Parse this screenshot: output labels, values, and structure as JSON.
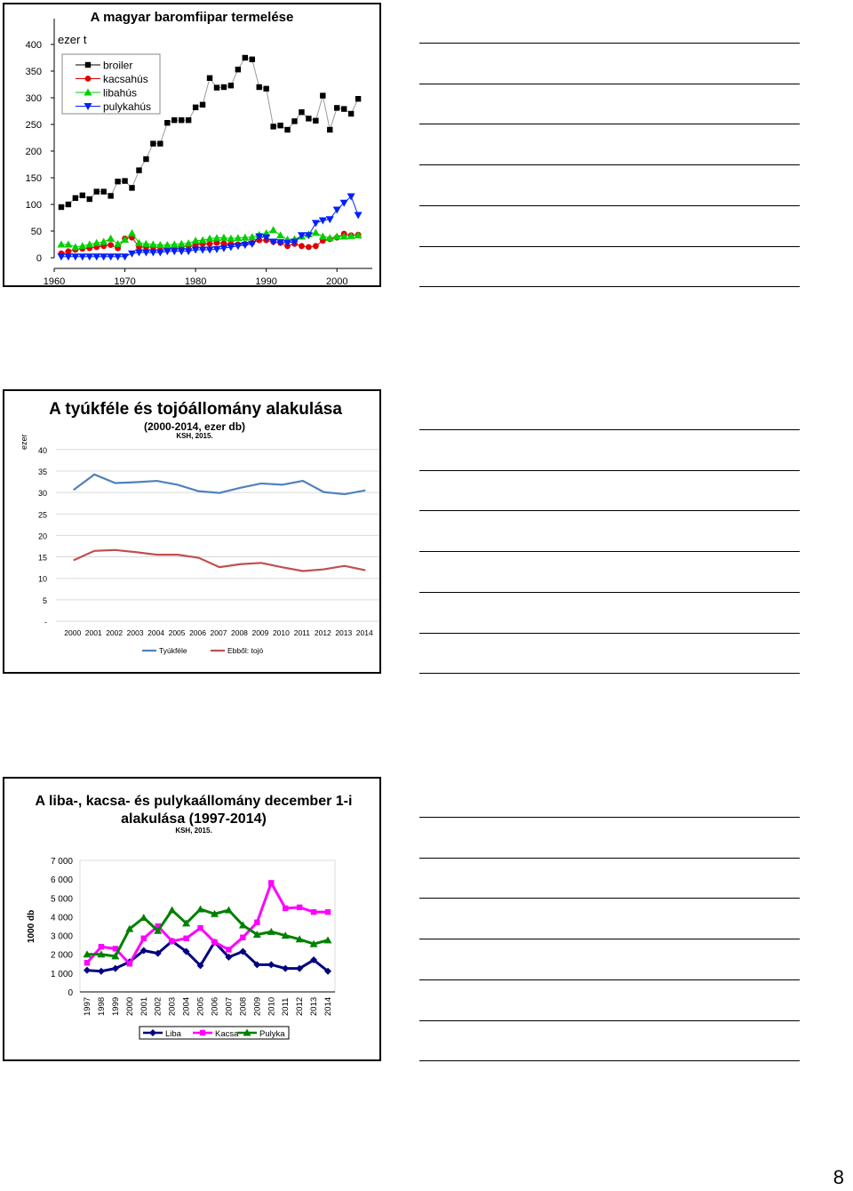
{
  "page_number": "8",
  "chart_data": [
    {
      "type": "line",
      "title": "A magyar baromfiipar termelése",
      "ylabel": "ezer t",
      "xlabel": "",
      "x_ticks": [
        "1960",
        "1970",
        "1980",
        "1990",
        "2000"
      ],
      "y_ticks": [
        "0",
        "50",
        "100",
        "150",
        "200",
        "250",
        "300",
        "350",
        "400"
      ],
      "xlim": [
        1960,
        2005
      ],
      "ylim": [
        0,
        400
      ],
      "legend_position": "top-left",
      "x": [
        1961,
        1962,
        1963,
        1964,
        1965,
        1966,
        1967,
        1968,
        1969,
        1970,
        1971,
        1972,
        1973,
        1974,
        1975,
        1976,
        1977,
        1978,
        1979,
        1980,
        1981,
        1982,
        1983,
        1984,
        1985,
        1986,
        1987,
        1988,
        1989,
        1990,
        1991,
        1992,
        1993,
        1994,
        1995,
        1996,
        1997,
        1998,
        1999,
        2000,
        2001,
        2002,
        2003
      ],
      "series": [
        {
          "name": "broiler",
          "color": "#000000",
          "marker": "square",
          "values": [
            95,
            100,
            112,
            117,
            110,
            124,
            124,
            116,
            143,
            144,
            131,
            164,
            185,
            214,
            214,
            253,
            258,
            258,
            258,
            282,
            287,
            337,
            319,
            320,
            323,
            353,
            375,
            372,
            320,
            317,
            246,
            248,
            240,
            256,
            273,
            261,
            257,
            304,
            240,
            281,
            279,
            270,
            298
          ]
        },
        {
          "name": "kacsahús",
          "color": "#e00000",
          "marker": "circle",
          "values": [
            8,
            12,
            15,
            17,
            18,
            20,
            22,
            24,
            18,
            36,
            38,
            20,
            20,
            20,
            20,
            18,
            20,
            20,
            22,
            24,
            26,
            26,
            28,
            27,
            26,
            25,
            26,
            28,
            33,
            33,
            30,
            28,
            22,
            26,
            22,
            20,
            22,
            32,
            35,
            38,
            45,
            42,
            43
          ]
        },
        {
          "name": "libahús",
          "color": "#00d000",
          "marker": "triangle-up",
          "values": [
            25,
            25,
            20,
            22,
            25,
            28,
            30,
            36,
            26,
            34,
            46,
            28,
            26,
            25,
            24,
            24,
            25,
            26,
            27,
            32,
            33,
            36,
            37,
            38,
            36,
            37,
            38,
            39,
            43,
            46,
            52,
            42,
            34,
            35,
            40,
            44,
            47,
            40,
            37,
            40,
            40,
            41,
            42
          ]
        },
        {
          "name": "pulykahús",
          "color": "#0020ff",
          "marker": "triangle-down",
          "values": [
            2,
            2,
            2,
            2,
            2,
            2,
            2,
            2,
            2,
            2,
            8,
            10,
            10,
            10,
            10,
            12,
            12,
            12,
            12,
            15,
            15,
            15,
            16,
            18,
            20,
            22,
            24,
            26,
            40,
            38,
            30,
            29,
            28,
            30,
            42,
            42,
            65,
            70,
            72,
            90,
            103,
            115,
            80
          ]
        }
      ]
    },
    {
      "type": "line",
      "title": "A tyúkféle és tojóállomány alakulása",
      "subtitle": "(2000-2014, ezer db)",
      "source": "KSH, 2015.",
      "ylabel": "ezer",
      "y_tick_labels": [
        "-",
        "5",
        "10",
        "15",
        "20",
        "25",
        "30",
        "35",
        "40"
      ],
      "ylim": [
        0,
        40
      ],
      "legend_position": "bottom",
      "categories": [
        "2000",
        "2001",
        "2002",
        "2003",
        "2004",
        "2005",
        "2006",
        "2007",
        "2008",
        "2009",
        "2010",
        "2011",
        "2012",
        "2013",
        "2014"
      ],
      "series": [
        {
          "name": "Tyúkféle",
          "color": "#4f81bd",
          "values": [
            30.6,
            34.2,
            32.2,
            32.4,
            32.7,
            31.8,
            30.3,
            29.9,
            31.1,
            32.1,
            31.8,
            32.7,
            30.1,
            29.6,
            30.5
          ]
        },
        {
          "name": "Ebből: tojó",
          "color": "#c0504d",
          "values": [
            14.2,
            16.4,
            16.6,
            16.1,
            15.5,
            15.5,
            14.8,
            12.6,
            13.3,
            13.6,
            12.6,
            11.7,
            12.1,
            12.9,
            11.9
          ]
        }
      ]
    },
    {
      "type": "line",
      "title": "A liba-, kacsa- és pulykaállomány december 1-i alakulása (1997-2014)",
      "source": "KSH, 2015.",
      "ylabel": "1000 db",
      "y_ticks": [
        "0",
        "1 000",
        "2 000",
        "3 000",
        "4 000",
        "5 000",
        "6 000",
        "7 000"
      ],
      "ylim": [
        0,
        7000
      ],
      "legend_position": "bottom",
      "categories": [
        "1997",
        "1998",
        "1999",
        "2000",
        "2001",
        "2002",
        "2003",
        "2004",
        "2005",
        "2006",
        "2007",
        "2008",
        "2009",
        "2010",
        "2011",
        "2012",
        "2013",
        "2014"
      ],
      "series": [
        {
          "name": "Liba",
          "color": "#000080",
          "marker": "diamond",
          "values": [
            1150,
            1100,
            1250,
            1600,
            2200,
            2050,
            2700,
            2150,
            1400,
            2650,
            1850,
            2150,
            1450,
            1450,
            1250,
            1250,
            1700,
            1100
          ]
        },
        {
          "name": "Kacsa",
          "color": "#ff00ff",
          "marker": "square",
          "values": [
            1550,
            2400,
            2300,
            1500,
            2850,
            3500,
            2700,
            2850,
            3400,
            2650,
            2250,
            2900,
            3700,
            5800,
            4450,
            4500,
            4250,
            4250
          ]
        },
        {
          "name": "Pulyka",
          "color": "#008000",
          "marker": "triangle-up",
          "values": [
            2000,
            2000,
            1900,
            3350,
            3950,
            3250,
            4350,
            3650,
            4400,
            4150,
            4350,
            3550,
            3050,
            3200,
            3000,
            2800,
            2550,
            2750
          ]
        }
      ]
    }
  ]
}
